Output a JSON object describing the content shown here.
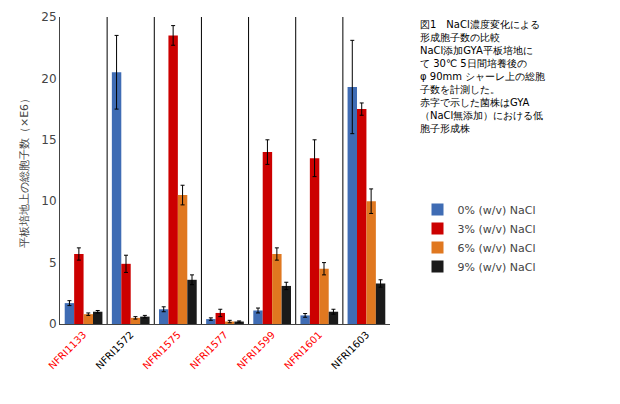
{
  "chart_data": {
    "type": "bar",
    "categories": [
      "NFRI1133",
      "NFRI1572",
      "NFRI1575",
      "NFRI1577",
      "NFRI1599",
      "NFRI1601",
      "NFRI1603"
    ],
    "category_colors": [
      "red",
      "black",
      "red",
      "red",
      "red",
      "red",
      "black"
    ],
    "series": [
      {
        "name": "0% (w/v) NaCl",
        "color": "#3F6CB4",
        "values": [
          1.7,
          20.5,
          1.2,
          0.4,
          1.1,
          0.7,
          19.3
        ],
        "errors": [
          0.2,
          3.0,
          0.2,
          0.1,
          0.2,
          0.15,
          3.8
        ]
      },
      {
        "name": "3% (w/v) NaCl",
        "color": "#CC0000",
        "values": [
          5.7,
          4.9,
          23.5,
          0.9,
          14.0,
          13.5,
          17.5
        ],
        "errors": [
          0.5,
          0.7,
          0.8,
          0.3,
          1.0,
          1.5,
          0.5
        ]
      },
      {
        "name": "6% (w/v) NaCl",
        "color": "#E07820",
        "values": [
          0.8,
          0.5,
          10.5,
          0.2,
          5.7,
          4.5,
          10.0
        ],
        "errors": [
          0.1,
          0.1,
          0.8,
          0.1,
          0.5,
          0.5,
          1.0
        ]
      },
      {
        "name": "9% (w/v) NaCl",
        "color": "#1A1A1A",
        "values": [
          1.0,
          0.6,
          3.6,
          0.2,
          3.1,
          1.0,
          3.3
        ],
        "errors": [
          0.1,
          0.1,
          0.4,
          0.05,
          0.3,
          0.2,
          0.3
        ]
      }
    ],
    "ylabel": "平板培地上の総胞子数（×E6）",
    "annotations": [
      "図1　NaCl濃度変化による",
      "形成胞子数の比較",
      "NaCl添加GYA平板培地に",
      "て 30℃ 5日間培養後の",
      "φ 90mm シャーレ上の総胞",
      "子数を計測した。",
      "赤字で示した菌株はGYA",
      "（NaCl無添加）における低",
      "胞子形成株"
    ],
    "ylim": [
      0,
      25
    ],
    "yticks": [
      0,
      5,
      10,
      15,
      20,
      25
    ],
    "grid": false,
    "legend": "right"
  }
}
